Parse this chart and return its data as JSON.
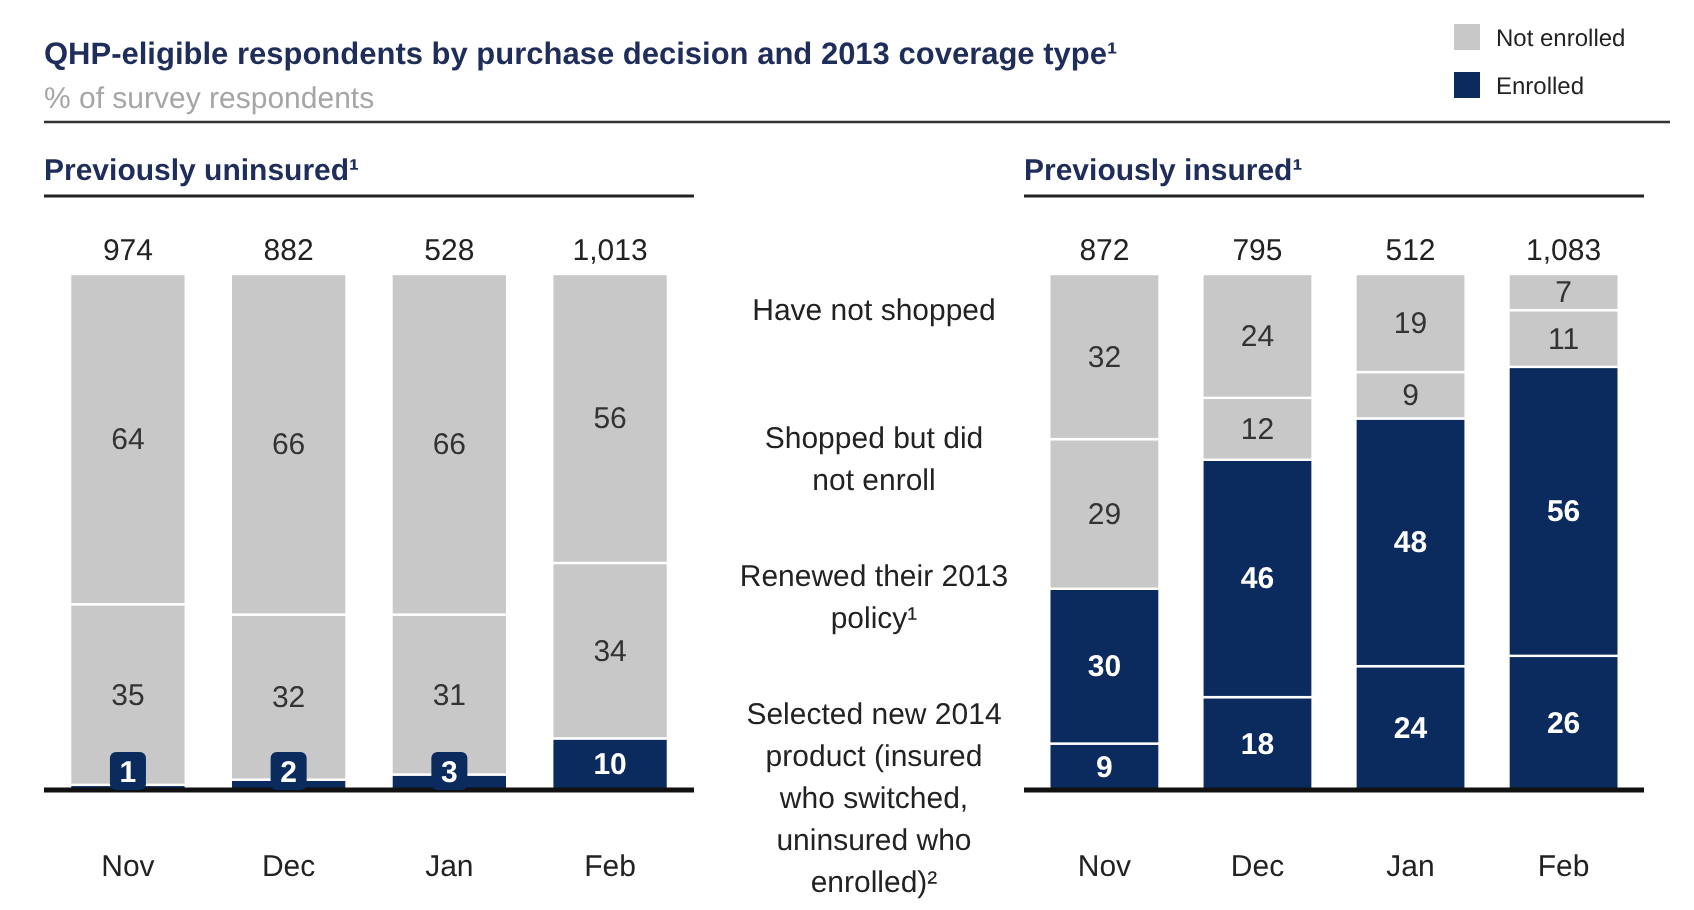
{
  "chart_data": [
    {
      "type": "other",
      "title": "QHP-eligible respondents by purchase decision and 2013 coverage type¹",
      "subtitle": "% of survey respondents",
      "annotations": [
        "Not enrolled",
        "Enrolled"
      ]
    },
    {
      "type": "bar",
      "title": "Previously uninsured¹",
      "stacked": true,
      "categories": [
        "Nov",
        "Dec",
        "Jan",
        "Feb"
      ],
      "ylim": [
        0,
        100
      ],
      "tick_labels": "x",
      "data_labels": true,
      "legend": false,
      "annotations": [
        {
          "text": "974",
          "x": "Nov",
          "y": 100
        },
        {
          "text": "882",
          "x": "Dec",
          "y": 100
        },
        {
          "text": "528",
          "x": "Jan",
          "y": 100
        },
        {
          "text": "1,013",
          "x": "Feb",
          "y": 100
        }
      ],
      "series": [
        {
          "color": "#0b2a5e",
          "values": [
            1,
            2,
            3,
            10
          ]
        },
        {
          "color": "#c8c8c8",
          "values": [
            35,
            32,
            31,
            34
          ]
        },
        {
          "color": "#c8c8c8",
          "values": [
            64,
            66,
            66,
            56
          ]
        }
      ]
    },
    {
      "type": "bar",
      "title": "Previously insured¹",
      "stacked": true,
      "categories": [
        "Nov",
        "Dec",
        "Jan",
        "Feb"
      ],
      "ylim": [
        0,
        100
      ],
      "tick_labels": "x",
      "data_labels": true,
      "legend": "left",
      "annotations": [
        {
          "text": "872",
          "x": "Nov",
          "y": 100
        },
        {
          "text": "795",
          "x": "Dec",
          "y": 100
        },
        {
          "text": "512",
          "x": "Jan",
          "y": 100
        },
        {
          "text": "1,083",
          "x": "Feb",
          "y": 100
        }
      ],
      "series": [
        {
          "name": "Selected new 2014 product (insured who switched, uninsured who enrolled)²",
          "color": "#0b2a5e",
          "values": [
            9,
            18,
            24,
            26
          ]
        },
        {
          "name": "Renewed their 2013 policy¹",
          "color": "#0b2a5e",
          "values": [
            30,
            46,
            48,
            56
          ]
        },
        {
          "name": "Shopped but did not enroll",
          "color": "#c8c8c8",
          "values": [
            29,
            12,
            9,
            11
          ]
        },
        {
          "name": "Have not shopped",
          "color": "#c8c8c8",
          "values": [
            32,
            24,
            19,
            7
          ]
        }
      ]
    }
  ]
}
